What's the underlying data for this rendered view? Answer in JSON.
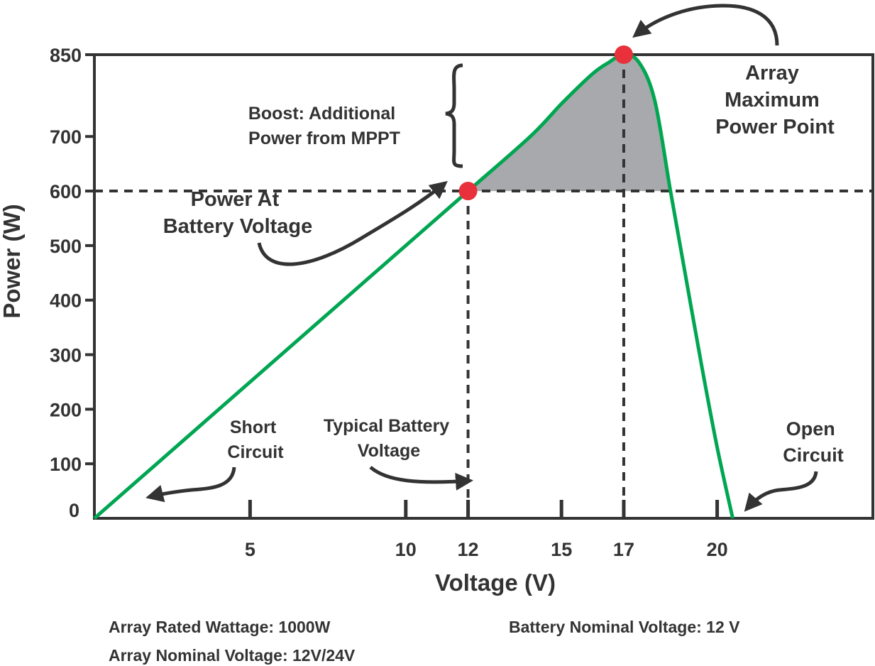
{
  "chart_data": {
    "type": "line",
    "xlabel": "Voltage (V)",
    "ylabel": "Power (W)",
    "x_ticks": [
      5,
      10,
      12,
      15,
      17,
      20
    ],
    "y_ticks": [
      0,
      100,
      200,
      300,
      400,
      500,
      600,
      700,
      850
    ],
    "xlim": [
      0,
      25
    ],
    "ylim": [
      0,
      850
    ],
    "series": [
      {
        "color": "#00a651",
        "x": [
          0,
          2,
          4,
          6,
          8,
          10,
          12,
          14,
          15,
          16,
          16.5,
          17,
          17.5,
          18,
          18.5,
          19,
          19.5,
          20,
          20.5
        ],
        "y": [
          0,
          100,
          200,
          300,
          400,
          500,
          600,
          700,
          760,
          815,
          835,
          850,
          835,
          765,
          600,
          440,
          280,
          130,
          0
        ]
      }
    ],
    "key_points": [
      {
        "x": 12,
        "y": 600,
        "color": "#e8313a"
      },
      {
        "x": 17,
        "y": 850,
        "color": "#e8313a"
      }
    ],
    "reference_lines": {
      "y": 600,
      "x": [
        12,
        17
      ]
    },
    "shaded_region": {
      "color": "#a7a9ac"
    },
    "annotations": {
      "boost": [
        "Boost: Additional",
        "Power from MPPT"
      ],
      "power_at_battery": [
        "Power At",
        "Battery Voltage"
      ],
      "max_power_point": [
        "Array",
        "Maximum",
        "Power Point"
      ],
      "short_circuit": [
        "Short",
        "Circuit"
      ],
      "typical_battery": [
        "Typical Battery",
        "Voltage"
      ],
      "open_circuit": [
        "Open",
        "Circuit"
      ]
    }
  },
  "footer": {
    "rated_wattage": "Array Rated Wattage: 1000W",
    "nominal_voltage": "Array Nominal Voltage: 12V/24V",
    "battery_nominal": "Battery Nominal Voltage: 12 V"
  }
}
